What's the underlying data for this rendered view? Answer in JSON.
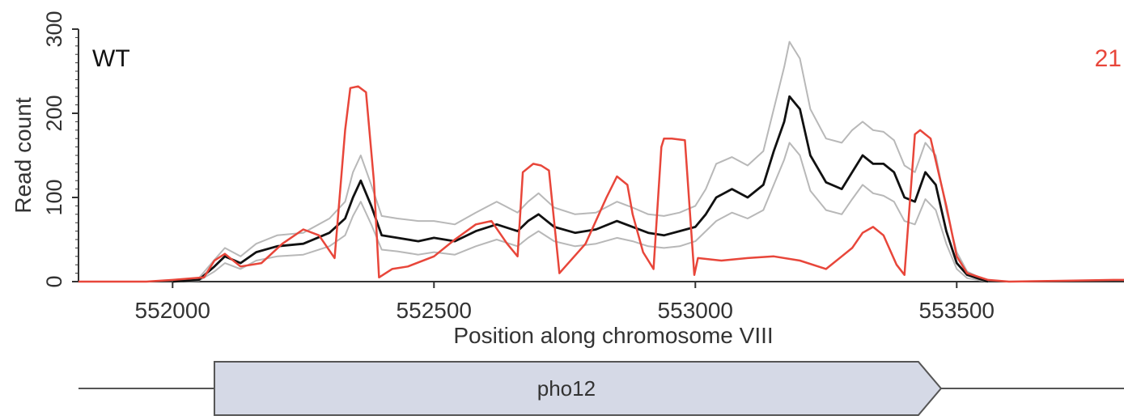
{
  "chart_data": {
    "type": "line",
    "title": "",
    "xlabel": "Position along chromosome VIII",
    "ylabel": "Read count",
    "xlim": [
      551820,
      553820
    ],
    "ylim": [
      0,
      300
    ],
    "x_ticks": [
      552000,
      552500,
      553000,
      553500
    ],
    "x_tick_labels": [
      "552000",
      "552500",
      "553000",
      "553500"
    ],
    "y_ticks": [
      0,
      100,
      200,
      300
    ],
    "y_tick_labels": [
      "0",
      "100",
      "200",
      "300"
    ],
    "grid": false,
    "annotations": [
      {
        "text": "WT",
        "color": "#111111",
        "position": "top-left"
      },
      {
        "text": "21",
        "color": "#e8463a",
        "position": "top-right"
      }
    ],
    "series": [
      {
        "color": "#e8463a",
        "x": [
          551820,
          551950,
          552000,
          552060,
          552080,
          552100,
          552130,
          552170,
          552210,
          552250,
          552280,
          552310,
          552330,
          552340,
          552355,
          552370,
          552385,
          552395,
          552420,
          552450,
          552500,
          552540,
          552580,
          552610,
          552640,
          552660,
          552670,
          552690,
          552705,
          552720,
          552740,
          552790,
          552830,
          552850,
          552870,
          552880,
          552900,
          552920,
          552935,
          552940,
          552955,
          552980,
          552998,
          553005,
          553050,
          553100,
          553150,
          553200,
          553250,
          553280,
          553300,
          553320,
          553340,
          553360,
          553385,
          553400,
          553420,
          553430,
          553450,
          553480,
          553500,
          553520,
          553560,
          553600,
          553700,
          553800,
          553820
        ],
        "y": [
          0,
          0,
          2,
          5,
          25,
          33,
          18,
          22,
          45,
          62,
          55,
          28,
          180,
          230,
          232,
          225,
          120,
          5,
          15,
          18,
          30,
          50,
          68,
          72,
          45,
          30,
          130,
          140,
          138,
          132,
          10,
          45,
          100,
          125,
          115,
          80,
          35,
          15,
          160,
          170,
          170,
          168,
          8,
          28,
          25,
          28,
          30,
          25,
          15,
          30,
          40,
          58,
          65,
          55,
          20,
          8,
          175,
          180,
          170,
          90,
          30,
          10,
          2,
          0,
          1,
          2,
          2
        ]
      },
      {
        "color": "#111111",
        "x": [
          552000,
          552050,
          552080,
          552100,
          552130,
          552160,
          552200,
          552250,
          552300,
          552330,
          552345,
          552360,
          552380,
          552400,
          552430,
          552470,
          552500,
          552540,
          552580,
          552620,
          552660,
          552680,
          552700,
          552730,
          552770,
          552810,
          552850,
          552880,
          552910,
          552940,
          552970,
          553000,
          553020,
          553040,
          553070,
          553100,
          553130,
          553150,
          553170,
          553180,
          553200,
          553220,
          553250,
          553280,
          553300,
          553320,
          553340,
          553360,
          553380,
          553400,
          553420,
          553440,
          553460,
          553480,
          553500,
          553520,
          553560
        ],
        "y": [
          0,
          2,
          18,
          30,
          22,
          35,
          42,
          45,
          58,
          75,
          100,
          120,
          90,
          55,
          52,
          48,
          52,
          48,
          60,
          68,
          60,
          72,
          80,
          65,
          58,
          62,
          72,
          65,
          58,
          55,
          60,
          65,
          80,
          100,
          110,
          100,
          115,
          155,
          190,
          220,
          205,
          150,
          118,
          110,
          130,
          150,
          140,
          140,
          130,
          100,
          95,
          130,
          115,
          60,
          22,
          8,
          0
        ]
      },
      {
        "color": "#b8b8b8",
        "x": [
          552000,
          552050,
          552080,
          552100,
          552130,
          552160,
          552200,
          552250,
          552300,
          552330,
          552345,
          552360,
          552380,
          552400,
          552430,
          552470,
          552500,
          552540,
          552580,
          552620,
          552660,
          552680,
          552700,
          552730,
          552770,
          552810,
          552850,
          552880,
          552910,
          552940,
          552970,
          553000,
          553020,
          553040,
          553070,
          553100,
          553130,
          553150,
          553170,
          553180,
          553200,
          553220,
          553250,
          553280,
          553300,
          553320,
          553340,
          553360,
          553380,
          553400,
          553420,
          553440,
          553460,
          553480,
          553500,
          553520,
          553560
        ],
        "y": [
          0,
          4,
          26,
          40,
          30,
          45,
          55,
          58,
          75,
          95,
          130,
          150,
          115,
          78,
          75,
          72,
          72,
          68,
          82,
          95,
          82,
          95,
          105,
          88,
          80,
          82,
          95,
          88,
          80,
          78,
          82,
          90,
          110,
          140,
          148,
          138,
          155,
          205,
          255,
          285,
          265,
          205,
          170,
          165,
          180,
          190,
          180,
          178,
          168,
          138,
          130,
          165,
          150,
          85,
          35,
          12,
          0
        ]
      },
      {
        "color": "#b8b8b8",
        "x": [
          552000,
          552050,
          552080,
          552100,
          552130,
          552160,
          552200,
          552250,
          552300,
          552330,
          552345,
          552360,
          552380,
          552400,
          552430,
          552470,
          552500,
          552540,
          552580,
          552620,
          552660,
          552680,
          552700,
          552730,
          552770,
          552810,
          552850,
          552880,
          552910,
          552940,
          552970,
          553000,
          553020,
          553040,
          553070,
          553100,
          553130,
          553150,
          553170,
          553180,
          553200,
          553220,
          553250,
          553280,
          553300,
          553320,
          553340,
          553360,
          553380,
          553400,
          553420,
          553440,
          553460,
          553480,
          553500,
          553520,
          553560
        ],
        "y": [
          0,
          1,
          12,
          22,
          15,
          25,
          30,
          32,
          42,
          55,
          78,
          95,
          68,
          38,
          36,
          32,
          35,
          32,
          42,
          50,
          42,
          52,
          60,
          48,
          42,
          45,
          52,
          48,
          42,
          40,
          42,
          48,
          60,
          72,
          82,
          75,
          85,
          115,
          145,
          165,
          150,
          108,
          85,
          80,
          98,
          115,
          105,
          102,
          95,
          72,
          68,
          98,
          85,
          45,
          15,
          4,
          0
        ]
      }
    ]
  },
  "gene": {
    "name": "pho12",
    "start": 552080,
    "end": 553470,
    "strand": "+"
  }
}
